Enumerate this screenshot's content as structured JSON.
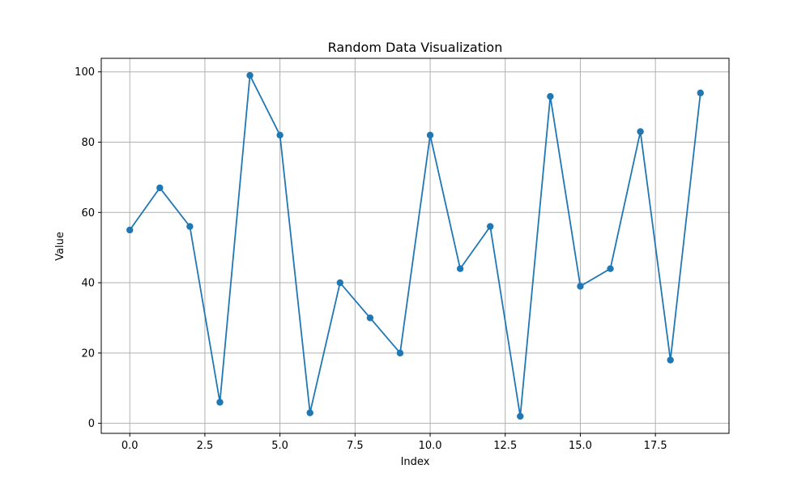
{
  "chart_data": {
    "type": "line",
    "title": "Random Data Visualization",
    "xlabel": "Index",
    "ylabel": "Value",
    "xlim": [
      -0.95,
      19.95
    ],
    "ylim": [
      -2.85,
      103.85
    ],
    "xticks": [
      0.0,
      2.5,
      5.0,
      7.5,
      10.0,
      12.5,
      15.0,
      17.5
    ],
    "xtick_labels": [
      "0.0",
      "2.5",
      "5.0",
      "7.5",
      "10.0",
      "12.5",
      "15.0",
      "17.5"
    ],
    "yticks": [
      0,
      20,
      40,
      60,
      80,
      100
    ],
    "ytick_labels": [
      "0",
      "20",
      "40",
      "60",
      "80",
      "100"
    ],
    "grid": true,
    "series": [
      {
        "color": "#1f77b4",
        "marker": "circle",
        "x": [
          0,
          1,
          2,
          3,
          4,
          5,
          6,
          7,
          8,
          9,
          10,
          11,
          12,
          13,
          14,
          15,
          16,
          17,
          18,
          19
        ],
        "y": [
          55,
          67,
          56,
          6,
          99,
          82,
          3,
          40,
          30,
          20,
          82,
          44,
          56,
          2,
          93,
          39,
          44,
          83,
          18,
          94
        ]
      }
    ]
  }
}
